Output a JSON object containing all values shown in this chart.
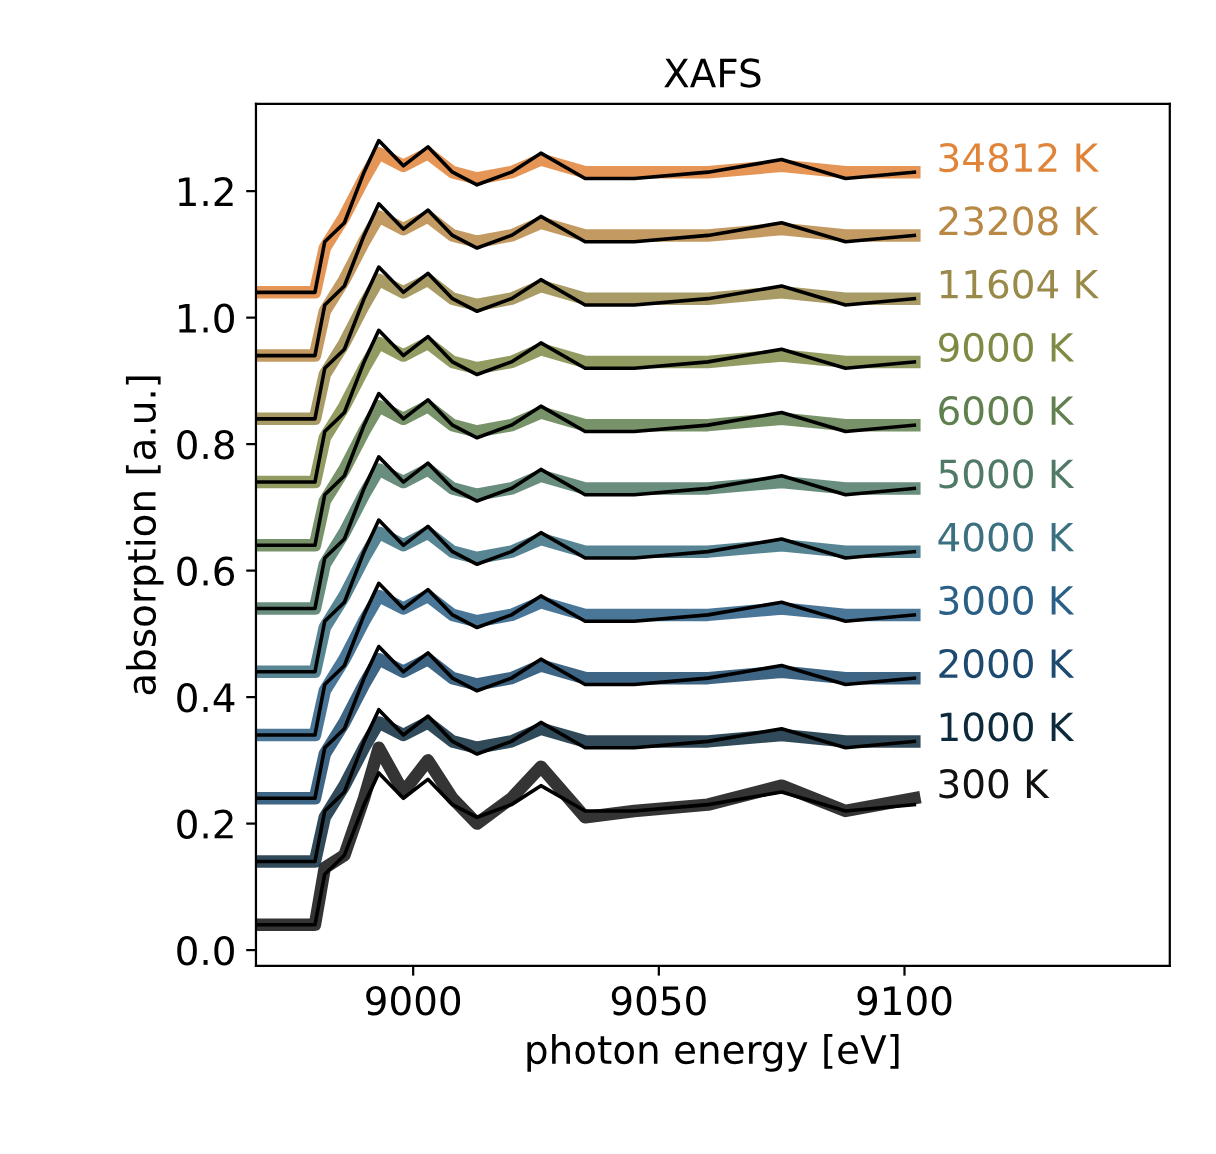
{
  "chart_data": {
    "type": "line",
    "title": "XAFS",
    "xlabel": "photon energy [eV]",
    "ylabel": "absorption [a.u.]",
    "x": [
      8968,
      8980,
      8982,
      8986,
      8990,
      8993,
      8998,
      9003,
      9008,
      9013,
      9020,
      9026,
      9035,
      9045,
      9060,
      9075,
      9088,
      9102
    ],
    "xlim": [
      8968,
      9154
    ],
    "xticks": [
      9000,
      9050,
      9100
    ],
    "ylim": [
      -0.025,
      1.338
    ],
    "yticks": [
      {
        "value": 0,
        "label": "0.0"
      },
      {
        "value": 0.2,
        "label": "0.2"
      },
      {
        "value": 0.4,
        "label": "0.4"
      },
      {
        "value": 0.6,
        "label": "0.6"
      },
      {
        "value": 0.8,
        "label": "0.8"
      },
      {
        "value": 1.0,
        "label": "1.0"
      },
      {
        "value": 1.2,
        "label": "1.2"
      }
    ],
    "grid": false,
    "legend": false,
    "marker": "none",
    "line_style": "solid",
    "series": [
      {
        "name": "300 K",
        "color": "#111111",
        "values": [
          0.04,
          0.04,
          0.13,
          0.15,
          0.24,
          0.32,
          0.25,
          0.3,
          0.24,
          0.2,
          0.24,
          0.29,
          0.21,
          0.22,
          0.23,
          0.26,
          0.22,
          0.24
        ]
      },
      {
        "name": "1000 K",
        "color": "#0d2a3c",
        "values": [
          0.14,
          0.14,
          0.21,
          0.26,
          0.32,
          0.36,
          0.34,
          0.36,
          0.33,
          0.32,
          0.33,
          0.35,
          0.33,
          0.33,
          0.33,
          0.34,
          0.33,
          0.33
        ]
      },
      {
        "name": "2000 K",
        "color": "#1d4a6e",
        "values": [
          0.24,
          0.24,
          0.31,
          0.36,
          0.42,
          0.46,
          0.44,
          0.46,
          0.43,
          0.42,
          0.43,
          0.45,
          0.43,
          0.43,
          0.43,
          0.44,
          0.43,
          0.43
        ]
      },
      {
        "name": "3000 K",
        "color": "#2a5f86",
        "values": [
          0.34,
          0.34,
          0.41,
          0.46,
          0.52,
          0.56,
          0.54,
          0.56,
          0.53,
          0.52,
          0.53,
          0.55,
          0.53,
          0.53,
          0.53,
          0.54,
          0.53,
          0.53
        ]
      },
      {
        "name": "4000 K",
        "color": "#3a7080",
        "values": [
          0.44,
          0.44,
          0.51,
          0.56,
          0.62,
          0.66,
          0.64,
          0.66,
          0.63,
          0.62,
          0.63,
          0.65,
          0.63,
          0.63,
          0.63,
          0.64,
          0.63,
          0.63
        ]
      },
      {
        "name": "5000 K",
        "color": "#4f7a66",
        "values": [
          0.54,
          0.54,
          0.61,
          0.66,
          0.72,
          0.76,
          0.74,
          0.76,
          0.73,
          0.72,
          0.73,
          0.75,
          0.73,
          0.73,
          0.73,
          0.74,
          0.73,
          0.73
        ]
      },
      {
        "name": "6000 K",
        "color": "#60804f",
        "values": [
          0.64,
          0.64,
          0.71,
          0.76,
          0.82,
          0.86,
          0.84,
          0.86,
          0.83,
          0.82,
          0.83,
          0.85,
          0.83,
          0.83,
          0.83,
          0.84,
          0.83,
          0.83
        ]
      },
      {
        "name": "9000 K",
        "color": "#7f8a45",
        "values": [
          0.74,
          0.74,
          0.81,
          0.86,
          0.92,
          0.96,
          0.94,
          0.96,
          0.93,
          0.92,
          0.93,
          0.95,
          0.93,
          0.93,
          0.93,
          0.94,
          0.93,
          0.93
        ]
      },
      {
        "name": "11604 K",
        "color": "#9a8a4a",
        "values": [
          0.84,
          0.84,
          0.91,
          0.96,
          1.02,
          1.06,
          1.04,
          1.06,
          1.03,
          1.02,
          1.03,
          1.05,
          1.03,
          1.03,
          1.03,
          1.04,
          1.03,
          1.03
        ]
      },
      {
        "name": "23208 K",
        "color": "#b98845",
        "values": [
          0.94,
          0.94,
          1.01,
          1.06,
          1.12,
          1.16,
          1.14,
          1.16,
          1.13,
          1.12,
          1.13,
          1.15,
          1.13,
          1.13,
          1.13,
          1.14,
          1.13,
          1.13
        ]
      },
      {
        "name": "34812 K",
        "color": "#e0843a",
        "values": [
          1.04,
          1.04,
          1.11,
          1.16,
          1.22,
          1.26,
          1.24,
          1.26,
          1.23,
          1.22,
          1.23,
          1.25,
          1.23,
          1.23,
          1.23,
          1.24,
          1.23,
          1.23
        ]
      },
      {
        "color": "#000000",
        "values": [
          0.04,
          0.04,
          0.12,
          0.15,
          0.23,
          0.28,
          0.24,
          0.27,
          0.23,
          0.21,
          0.23,
          0.26,
          0.22,
          0.22,
          0.23,
          0.25,
          0.22,
          0.23
        ]
      },
      {
        "color": "#000000",
        "values": [
          0.14,
          0.14,
          0.22,
          0.25,
          0.33,
          0.38,
          0.34,
          0.37,
          0.33,
          0.31,
          0.33,
          0.36,
          0.32,
          0.32,
          0.33,
          0.35,
          0.32,
          0.33
        ]
      },
      {
        "color": "#000000",
        "values": [
          0.24,
          0.24,
          0.32,
          0.35,
          0.43,
          0.48,
          0.44,
          0.47,
          0.43,
          0.41,
          0.43,
          0.46,
          0.42,
          0.42,
          0.43,
          0.45,
          0.42,
          0.43
        ]
      },
      {
        "color": "#000000",
        "values": [
          0.34,
          0.34,
          0.42,
          0.45,
          0.53,
          0.58,
          0.54,
          0.57,
          0.53,
          0.51,
          0.53,
          0.56,
          0.52,
          0.52,
          0.53,
          0.55,
          0.52,
          0.53
        ]
      },
      {
        "color": "#000000",
        "values": [
          0.44,
          0.44,
          0.52,
          0.55,
          0.63,
          0.68,
          0.64,
          0.67,
          0.63,
          0.61,
          0.63,
          0.66,
          0.62,
          0.62,
          0.63,
          0.65,
          0.62,
          0.63
        ]
      },
      {
        "color": "#000000",
        "values": [
          0.54,
          0.54,
          0.62,
          0.65,
          0.73,
          0.78,
          0.74,
          0.77,
          0.73,
          0.71,
          0.73,
          0.76,
          0.72,
          0.72,
          0.73,
          0.75,
          0.72,
          0.73
        ]
      },
      {
        "color": "#000000",
        "values": [
          0.64,
          0.64,
          0.72,
          0.75,
          0.83,
          0.88,
          0.84,
          0.87,
          0.83,
          0.81,
          0.83,
          0.86,
          0.82,
          0.82,
          0.83,
          0.85,
          0.82,
          0.83
        ]
      },
      {
        "color": "#000000",
        "values": [
          0.74,
          0.74,
          0.82,
          0.85,
          0.93,
          0.98,
          0.94,
          0.97,
          0.93,
          0.91,
          0.93,
          0.96,
          0.92,
          0.92,
          0.93,
          0.95,
          0.92,
          0.93
        ]
      },
      {
        "color": "#000000",
        "values": [
          0.84,
          0.84,
          0.92,
          0.95,
          1.03,
          1.08,
          1.04,
          1.07,
          1.03,
          1.01,
          1.03,
          1.06,
          1.02,
          1.02,
          1.03,
          1.05,
          1.02,
          1.03
        ]
      },
      {
        "color": "#000000",
        "values": [
          0.94,
          0.94,
          1.02,
          1.05,
          1.13,
          1.18,
          1.14,
          1.17,
          1.13,
          1.11,
          1.13,
          1.16,
          1.12,
          1.12,
          1.13,
          1.15,
          1.12,
          1.13
        ]
      },
      {
        "color": "#000000",
        "values": [
          1.04,
          1.04,
          1.12,
          1.15,
          1.23,
          1.28,
          1.24,
          1.27,
          1.23,
          1.21,
          1.23,
          1.26,
          1.22,
          1.22,
          1.23,
          1.25,
          1.22,
          1.23
        ]
      }
    ]
  }
}
